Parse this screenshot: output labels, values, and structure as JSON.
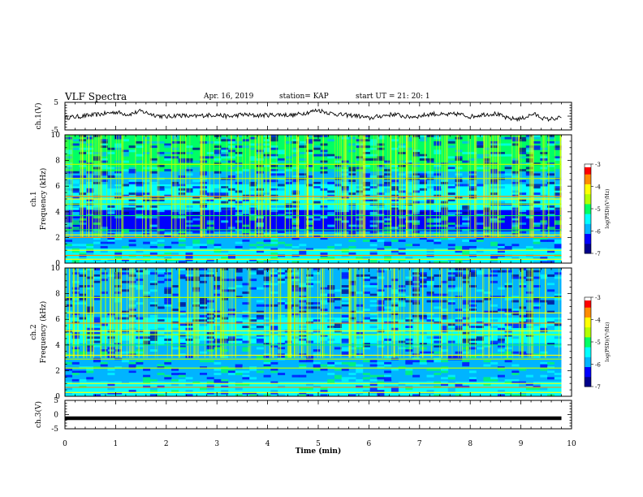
{
  "header": {
    "title": "VLF Spectra",
    "date": "Apr. 16, 2019",
    "station": "station= KAP",
    "start": "start  UT  =   21: 20: 1"
  },
  "chart_data": [
    {
      "type": "line",
      "panel": "ch.1 waveform",
      "ylabel": "ch.1(V)",
      "ylim": [
        -5,
        5
      ],
      "yticks": [
        "5",
        "-5"
      ],
      "xlim": [
        0,
        10
      ],
      "x": [
        0,
        0.25,
        0.5,
        0.75,
        1,
        1.25,
        1.5,
        1.75,
        2,
        2.25,
        2.5,
        2.75,
        3,
        3.25,
        3.5,
        3.75,
        4,
        4.25,
        4.5,
        4.75,
        5,
        5.25,
        5.5,
        5.75,
        6,
        6.25,
        6.5,
        6.75,
        7,
        7.25,
        7.5,
        7.75,
        8,
        8.25,
        8.5,
        8.75,
        9,
        9.25,
        9.5,
        9.8
      ],
      "values": [
        -0.5,
        -0.2,
        0.3,
        0.8,
        1.5,
        0.6,
        1.8,
        0.5,
        -0.3,
        0.4,
        -0.2,
        0.3,
        0.5,
        -0.2,
        0.6,
        0.2,
        0.4,
        0.6,
        0.3,
        1.2,
        2.2,
        1.0,
        0.4,
        0.2,
        -0.8,
        0.1,
        0.7,
        -0.3,
        0.0,
        0.9,
        0.4,
        0.8,
        -0.2,
        0.6,
        0.9,
        -0.9,
        -1.0,
        0.8,
        -1.2,
        -0.6
      ]
    },
    {
      "type": "heatmap",
      "panel": "ch.1 spectrogram",
      "ylabel": "ch.1\nFrequency (kHz)",
      "ylim": [
        0,
        10
      ],
      "yticks": [
        "0",
        "2",
        "4",
        "6",
        "8",
        "10"
      ],
      "xlim": [
        0,
        9.8
      ],
      "colorbar": {
        "label": "log(PSD)(V²/Hz)",
        "range": [
          -7,
          -3
        ],
        "ticks": [
          "-3",
          "-4",
          "-5",
          "-6",
          "-7"
        ]
      }
    },
    {
      "type": "heatmap",
      "panel": "ch.2 spectrogram",
      "ylabel": "ch.2\nFrequency (kHz)",
      "ylim": [
        0,
        10
      ],
      "yticks": [
        "0",
        "2",
        "4",
        "6",
        "8",
        "10"
      ],
      "xlim": [
        0,
        9.8
      ],
      "colorbar": {
        "label": "log(PSD)(V²/Hz)",
        "range": [
          -7,
          -3
        ],
        "ticks": [
          "-3",
          "-4",
          "-5",
          "-6",
          "-7"
        ]
      }
    },
    {
      "type": "line",
      "panel": "ch.3 waveform",
      "ylabel": "ch.3(V)",
      "ylim": [
        -5,
        5
      ],
      "yticks": [
        "5",
        "0",
        "-5"
      ],
      "xlim": [
        0,
        10
      ],
      "x": [
        0,
        9.8
      ],
      "values": [
        -1.3,
        -1.3
      ]
    }
  ],
  "xaxis": {
    "label": "Time  (min)",
    "ticks": [
      "0",
      "1",
      "2",
      "3",
      "4",
      "5",
      "6",
      "7",
      "8",
      "9",
      "10"
    ]
  },
  "colormap": [
    "#00008b",
    "#0000ff",
    "#00b4ff",
    "#00ffff",
    "#00ff64",
    "#b4ff00",
    "#ffff00",
    "#ff8c00",
    "#ff0000",
    "#ffffff"
  ]
}
